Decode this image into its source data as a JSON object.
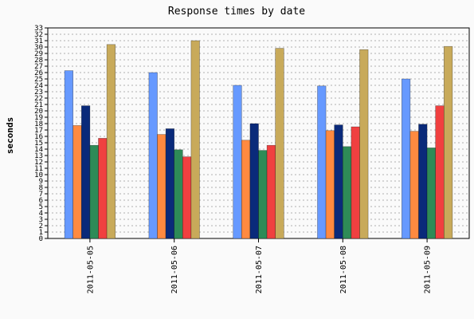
{
  "chart_data": {
    "type": "bar",
    "title": "Response times by date",
    "xlabel": "",
    "ylabel": "seconds",
    "ylim": [
      0,
      33
    ],
    "yticks": [
      0,
      1,
      2,
      3,
      4,
      5,
      6,
      7,
      8,
      9,
      10,
      11,
      12,
      13,
      14,
      15,
      16,
      17,
      18,
      19,
      20,
      21,
      22,
      23,
      24,
      25,
      26,
      27,
      28,
      29,
      30,
      31,
      32,
      33
    ],
    "grid": true,
    "legend": "none",
    "categories": [
      "2011-05-05",
      "2011-05-06",
      "2011-05-07",
      "2011-05-08",
      "2011-05-09"
    ],
    "series": [
      {
        "color": "#6699ff",
        "values": [
          26.3,
          26.0,
          24.0,
          23.9,
          25.0
        ]
      },
      {
        "color": "#ff8a40",
        "values": [
          17.7,
          16.3,
          15.4,
          16.9,
          16.8
        ]
      },
      {
        "color": "#0a2a7a",
        "values": [
          20.8,
          17.2,
          18.0,
          17.8,
          17.9
        ]
      },
      {
        "color": "#2e8b57",
        "values": [
          14.6,
          13.9,
          13.8,
          14.4,
          14.2
        ]
      },
      {
        "color": "#f04040",
        "values": [
          15.7,
          12.8,
          14.6,
          17.5,
          20.8
        ]
      },
      {
        "color": "#c8aa5a",
        "values": [
          30.4,
          31.0,
          29.8,
          29.6,
          30.1
        ]
      }
    ]
  }
}
